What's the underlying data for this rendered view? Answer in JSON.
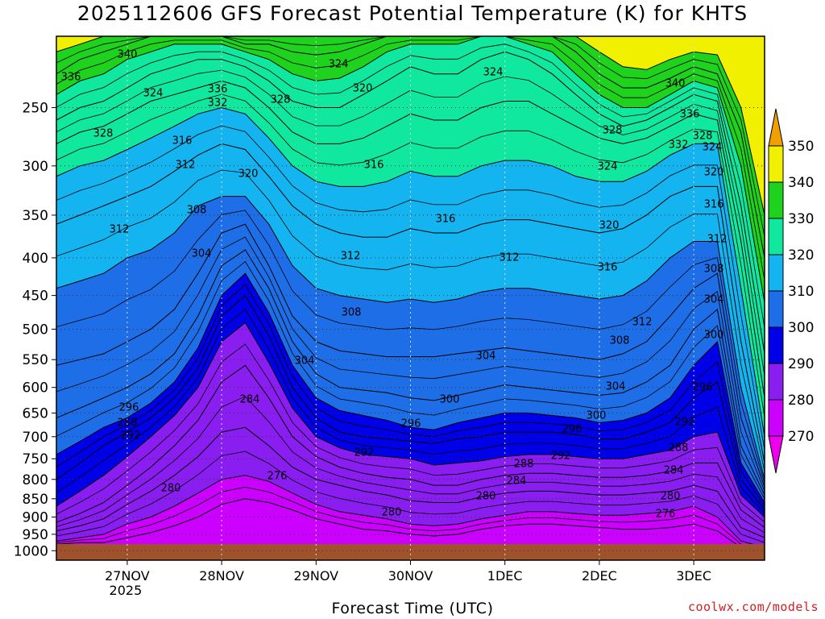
{
  "chart_data": {
    "type": "heatmap",
    "title": "2025112606 GFS Forecast Potential Temperature (K) for KHTS",
    "xlabel": "Forecast Time (UTC)",
    "ylabel": "",
    "y_axis": {
      "ticks": [
        250,
        300,
        350,
        400,
        450,
        500,
        550,
        600,
        650,
        700,
        750,
        800,
        850,
        900,
        950,
        1000
      ],
      "scale": "log-pressure",
      "range": [
        200,
        1030
      ]
    },
    "x_axis": {
      "ticks": [
        {
          "label": "27NOV",
          "sublabel": "2025",
          "hour": 18
        },
        {
          "label": "28NOV",
          "sublabel": "",
          "hour": 42
        },
        {
          "label": "29NOV",
          "sublabel": "",
          "hour": 66
        },
        {
          "label": "30NOV",
          "sublabel": "",
          "hour": 90
        },
        {
          "label": "1DEC",
          "sublabel": "",
          "hour": 114
        },
        {
          "label": "2DEC",
          "sublabel": "",
          "hour": 138
        },
        {
          "label": "3DEC",
          "sublabel": "",
          "hour": 162
        }
      ],
      "range": [
        0,
        180
      ]
    },
    "colorbar": {
      "levels": [
        270,
        280,
        290,
        300,
        310,
        320,
        330,
        340,
        350
      ],
      "colors": [
        "#ee00ee",
        "#cc00ff",
        "#8a1ef0",
        "#0000e8",
        "#1e6ee8",
        "#14b4f0",
        "#10e8a0",
        "#1ed21e",
        "#f0f000",
        "#f0a000"
      ]
    },
    "series": [
      {
        "x": [
          0,
          6,
          12,
          18,
          24,
          30,
          36,
          42,
          48,
          54,
          60,
          66,
          72,
          78,
          84,
          90,
          96,
          102,
          108,
          114,
          120,
          126,
          132,
          138,
          144,
          150,
          156,
          162,
          168,
          174,
          180
        ],
        "profiles_note": ""
      }
    ],
    "isentropes": [
      {
        "level": 276,
        "pressures": [
          980,
          975,
          975,
          960,
          945,
          925,
          900,
          865,
          850,
          860,
          880,
          905,
          920,
          935,
          940,
          950,
          955,
          950,
          935,
          925,
          920,
          920,
          925,
          930,
          935,
          935,
          930,
          920,
          940,
          990,
          1000
        ]
      },
      {
        "level": 280,
        "pressures": [
          970,
          960,
          950,
          920,
          900,
          870,
          835,
          800,
          790,
          805,
          835,
          865,
          885,
          895,
          905,
          920,
          925,
          920,
          905,
          895,
          885,
          885,
          890,
          895,
          895,
          890,
          885,
          870,
          900,
          970,
          990
        ]
      },
      {
        "level": 284,
        "pressures": [
          940,
          925,
          905,
          865,
          830,
          790,
          745,
          690,
          680,
          720,
          770,
          800,
          815,
          830,
          840,
          855,
          860,
          860,
          845,
          835,
          830,
          830,
          835,
          840,
          840,
          835,
          830,
          815,
          830,
          930,
          960
        ]
      },
      {
        "level": 288,
        "pressures": [
          915,
          890,
          860,
          815,
          770,
          720,
          665,
          590,
          560,
          620,
          700,
          745,
          770,
          785,
          795,
          800,
          815,
          815,
          800,
          790,
          785,
          785,
          790,
          795,
          795,
          790,
          780,
          760,
          760,
          880,
          930
        ]
      },
      {
        "level": 292,
        "pressures": [
          870,
          830,
          790,
          745,
          700,
          655,
          600,
          520,
          490,
          555,
          640,
          700,
          725,
          740,
          745,
          750,
          765,
          760,
          755,
          745,
          740,
          740,
          745,
          750,
          750,
          740,
          730,
          700,
          690,
          840,
          900
        ]
      },
      {
        "level": 296,
        "pressures": [
          800,
          760,
          720,
          690,
          660,
          620,
          565,
          480,
          450,
          510,
          600,
          660,
          690,
          700,
          705,
          710,
          715,
          705,
          700,
          690,
          690,
          690,
          695,
          705,
          705,
          690,
          670,
          620,
          590,
          800,
          880
        ]
      },
      {
        "level": 300,
        "pressures": [
          740,
          710,
          680,
          660,
          630,
          590,
          530,
          450,
          420,
          475,
          560,
          620,
          645,
          655,
          665,
          680,
          685,
          670,
          660,
          650,
          650,
          655,
          660,
          670,
          665,
          650,
          620,
          560,
          520,
          760,
          860
        ]
      },
      {
        "level": 304,
        "pressures": [
          660,
          640,
          620,
          600,
          575,
          540,
          480,
          410,
          390,
          440,
          520,
          575,
          600,
          605,
          610,
          620,
          625,
          615,
          605,
          595,
          600,
          605,
          610,
          615,
          610,
          590,
          560,
          500,
          470,
          720,
          840
        ]
      },
      {
        "level": 308,
        "pressures": [
          560,
          550,
          540,
          520,
          500,
          470,
          420,
          370,
          360,
          410,
          480,
          520,
          535,
          540,
          545,
          545,
          545,
          540,
          535,
          530,
          535,
          540,
          545,
          550,
          540,
          520,
          480,
          440,
          420,
          660,
          820
        ]
      },
      {
        "level": 312,
        "pressures": [
          440,
          430,
          420,
          400,
          390,
          370,
          340,
          330,
          330,
          360,
          410,
          440,
          450,
          455,
          460,
          455,
          460,
          455,
          445,
          440,
          440,
          445,
          450,
          455,
          450,
          430,
          400,
          380,
          380,
          600,
          800
        ]
      },
      {
        "level": 316,
        "pressures": [
          360,
          350,
          340,
          330,
          320,
          305,
          290,
          280,
          285,
          310,
          340,
          360,
          370,
          375,
          375,
          365,
          370,
          370,
          360,
          355,
          355,
          360,
          365,
          370,
          365,
          350,
          330,
          320,
          320,
          520,
          760
        ]
      },
      {
        "level": 320,
        "pressures": [
          310,
          300,
          295,
          285,
          275,
          265,
          255,
          250,
          255,
          275,
          300,
          315,
          320,
          320,
          315,
          305,
          310,
          310,
          300,
          295,
          295,
          300,
          310,
          315,
          315,
          305,
          290,
          280,
          280,
          440,
          700
        ]
      },
      {
        "level": 324,
        "pressures": [
          280,
          270,
          265,
          255,
          245,
          240,
          235,
          230,
          235,
          250,
          270,
          280,
          280,
          275,
          265,
          255,
          260,
          260,
          250,
          245,
          245,
          255,
          265,
          275,
          280,
          275,
          265,
          255,
          260,
          380,
          620
        ]
      },
      {
        "level": 328,
        "pressures": [
          260,
          250,
          245,
          235,
          225,
          220,
          215,
          215,
          220,
          230,
          245,
          250,
          250,
          240,
          230,
          220,
          225,
          225,
          215,
          210,
          215,
          225,
          240,
          255,
          265,
          260,
          250,
          240,
          245,
          340,
          540
        ]
      },
      {
        "level": 332,
        "pressures": [
          240,
          230,
          225,
          215,
          210,
          205,
          205,
          205,
          210,
          215,
          225,
          230,
          228,
          220,
          210,
          205,
          205,
          205,
          200,
          200,
          205,
          210,
          225,
          240,
          250,
          250,
          240,
          230,
          235,
          300,
          460
        ]
      },
      {
        "level": 336,
        "pressures": [
          225,
          215,
          210,
          205,
          200,
          200,
          200,
          200,
          205,
          205,
          210,
          212,
          210,
          205,
          200,
          200,
          200,
          200,
          200,
          200,
          200,
          200,
          210,
          225,
          235,
          235,
          228,
          220,
          225,
          270,
          400
        ]
      },
      {
        "level": 340,
        "pressures": [
          210,
          205,
          200,
          200,
          200,
          200,
          200,
          200,
          200,
          200,
          200,
          200,
          200,
          200,
          200,
          200,
          200,
          200,
          200,
          200,
          200,
          200,
          200,
          210,
          220,
          222,
          215,
          210,
          212,
          250,
          350
        ]
      }
    ],
    "contour_labels": [
      {
        "text": "340",
        "x": 158,
        "y": 68
      },
      {
        "text": "336",
        "x": 88,
        "y": 96
      },
      {
        "text": "324",
        "x": 190,
        "y": 116
      },
      {
        "text": "336",
        "x": 270,
        "y": 111
      },
      {
        "text": "332",
        "x": 270,
        "y": 128
      },
      {
        "text": "328",
        "x": 348,
        "y": 124
      },
      {
        "text": "324",
        "x": 420,
        "y": 80
      },
      {
        "text": "320",
        "x": 450,
        "y": 110
      },
      {
        "text": "324",
        "x": 612,
        "y": 90
      },
      {
        "text": "328",
        "x": 128,
        "y": 166
      },
      {
        "text": "316",
        "x": 226,
        "y": 175
      },
      {
        "text": "312",
        "x": 230,
        "y": 205
      },
      {
        "text": "320",
        "x": 308,
        "y": 216
      },
      {
        "text": "316",
        "x": 464,
        "y": 205
      },
      {
        "text": "316",
        "x": 553,
        "y": 272
      },
      {
        "text": "312",
        "x": 148,
        "y": 285
      },
      {
        "text": "308",
        "x": 244,
        "y": 261
      },
      {
        "text": "304",
        "x": 250,
        "y": 315
      },
      {
        "text": "312",
        "x": 435,
        "y": 318
      },
      {
        "text": "312",
        "x": 632,
        "y": 320
      },
      {
        "text": "308",
        "x": 436,
        "y": 388
      },
      {
        "text": "304",
        "x": 378,
        "y": 448
      },
      {
        "text": "304",
        "x": 603,
        "y": 442
      },
      {
        "text": "300",
        "x": 558,
        "y": 496
      },
      {
        "text": "296",
        "x": 160,
        "y": 506
      },
      {
        "text": "288",
        "x": 158,
        "y": 525
      },
      {
        "text": "292",
        "x": 162,
        "y": 541
      },
      {
        "text": "284",
        "x": 310,
        "y": 496
      },
      {
        "text": "296",
        "x": 510,
        "y": 526
      },
      {
        "text": "292",
        "x": 452,
        "y": 562
      },
      {
        "text": "276",
        "x": 344,
        "y": 591
      },
      {
        "text": "280",
        "x": 212,
        "y": 606
      },
      {
        "text": "288",
        "x": 650,
        "y": 576
      },
      {
        "text": "284",
        "x": 641,
        "y": 597
      },
      {
        "text": "280",
        "x": 603,
        "y": 616
      },
      {
        "text": "280",
        "x": 486,
        "y": 636
      },
      {
        "text": "292",
        "x": 696,
        "y": 566
      },
      {
        "text": "296",
        "x": 710,
        "y": 533
      },
      {
        "text": "300",
        "x": 740,
        "y": 516
      },
      {
        "text": "304",
        "x": 764,
        "y": 480
      },
      {
        "text": "308",
        "x": 769,
        "y": 423
      },
      {
        "text": "312",
        "x": 797,
        "y": 400
      },
      {
        "text": "316",
        "x": 754,
        "y": 332
      },
      {
        "text": "320",
        "x": 756,
        "y": 280
      },
      {
        "text": "324",
        "x": 754,
        "y": 207
      },
      {
        "text": "328",
        "x": 760,
        "y": 162
      },
      {
        "text": "340",
        "x": 838,
        "y": 104
      },
      {
        "text": "336",
        "x": 856,
        "y": 142
      },
      {
        "text": "332",
        "x": 842,
        "y": 180
      },
      {
        "text": "328",
        "x": 872,
        "y": 169
      },
      {
        "text": "324",
        "x": 884,
        "y": 183
      },
      {
        "text": "320",
        "x": 886,
        "y": 214
      },
      {
        "text": "316",
        "x": 886,
        "y": 254
      },
      {
        "text": "312",
        "x": 890,
        "y": 297
      },
      {
        "text": "308",
        "x": 886,
        "y": 334
      },
      {
        "text": "304",
        "x": 886,
        "y": 372
      },
      {
        "text": "300",
        "x": 886,
        "y": 416
      },
      {
        "text": "296",
        "x": 872,
        "y": 481
      },
      {
        "text": "292",
        "x": 850,
        "y": 524
      },
      {
        "text": "288",
        "x": 842,
        "y": 556
      },
      {
        "text": "284",
        "x": 836,
        "y": 584
      },
      {
        "text": "280",
        "x": 832,
        "y": 616
      },
      {
        "text": "276",
        "x": 826,
        "y": 638
      }
    ],
    "legend": "right",
    "grid": true
  },
  "credit": "coolwx.com/models"
}
